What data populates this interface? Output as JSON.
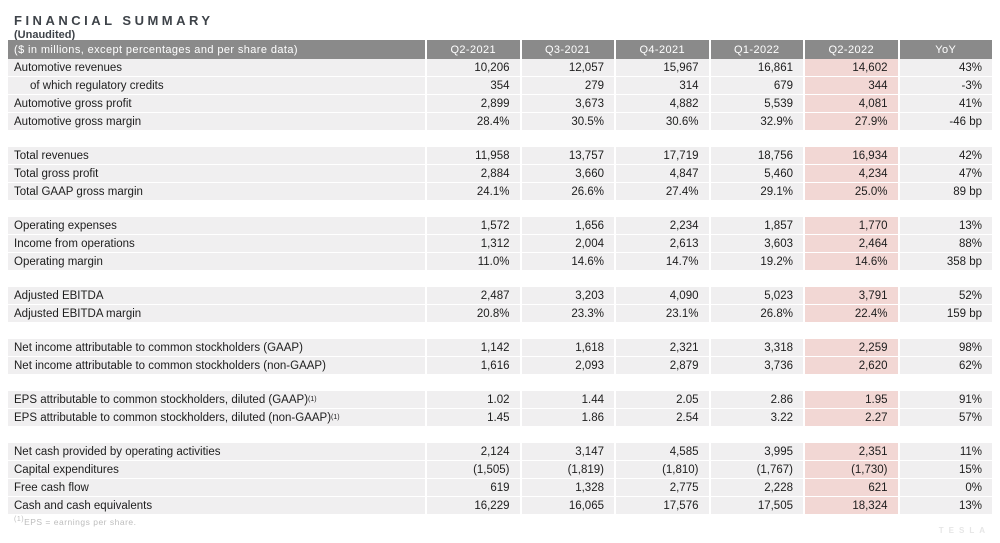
{
  "page": {
    "title": "FINANCIAL SUMMARY",
    "subtitle": "(Unaudited)",
    "footnote_sup": "(1)",
    "footnote_text": "EPS = earnings per share.",
    "logo_text": "TESLA"
  },
  "colors": {
    "header_bg": "#8a8a8a",
    "header_text": "#ffffff",
    "row_bg": "#f0eff0",
    "highlight_bg": "#f2d7d4",
    "title_color": "#3e4349",
    "text_color": "#1d1d1d",
    "footnote_color": "#bdbdbd",
    "logo_color": "#e6e6e6"
  },
  "table": {
    "label_header": "($ in millions, except percentages and per share data)",
    "columns": [
      "Q2-2021",
      "Q3-2021",
      "Q4-2021",
      "Q1-2022",
      "Q2-2022",
      "YoY"
    ],
    "highlight_column": "Q2-2022",
    "sections": [
      {
        "rows": [
          {
            "label": "Automotive revenues",
            "values": [
              "10,206",
              "12,057",
              "15,967",
              "16,861",
              "14,602",
              "43%"
            ]
          },
          {
            "label": "of which regulatory credits",
            "indent": true,
            "values": [
              "354",
              "279",
              "314",
              "679",
              "344",
              "-3%"
            ]
          },
          {
            "label": "Automotive gross profit",
            "values": [
              "2,899",
              "3,673",
              "4,882",
              "5,539",
              "4,081",
              "41%"
            ]
          },
          {
            "label": "Automotive gross margin",
            "values": [
              "28.4%",
              "30.5%",
              "30.6%",
              "32.9%",
              "27.9%",
              "-46 bp"
            ]
          }
        ]
      },
      {
        "rows": [
          {
            "label": "Total revenues",
            "values": [
              "11,958",
              "13,757",
              "17,719",
              "18,756",
              "16,934",
              "42%"
            ]
          },
          {
            "label": "Total gross profit",
            "values": [
              "2,884",
              "3,660",
              "4,847",
              "5,460",
              "4,234",
              "47%"
            ]
          },
          {
            "label": "Total GAAP gross margin",
            "values": [
              "24.1%",
              "26.6%",
              "27.4%",
              "29.1%",
              "25.0%",
              "89 bp"
            ]
          }
        ]
      },
      {
        "rows": [
          {
            "label": "Operating expenses",
            "values": [
              "1,572",
              "1,656",
              "2,234",
              "1,857",
              "1,770",
              "13%"
            ]
          },
          {
            "label": "Income from operations",
            "values": [
              "1,312",
              "2,004",
              "2,613",
              "3,603",
              "2,464",
              "88%"
            ]
          },
          {
            "label": "Operating margin",
            "values": [
              "11.0%",
              "14.6%",
              "14.7%",
              "19.2%",
              "14.6%",
              "358 bp"
            ]
          }
        ]
      },
      {
        "rows": [
          {
            "label": "Adjusted EBITDA",
            "values": [
              "2,487",
              "3,203",
              "4,090",
              "5,023",
              "3,791",
              "52%"
            ]
          },
          {
            "label": "Adjusted EBITDA margin",
            "values": [
              "20.8%",
              "23.3%",
              "23.1%",
              "26.8%",
              "22.4%",
              "159 bp"
            ]
          }
        ]
      },
      {
        "rows": [
          {
            "label": "Net income attributable to common stockholders (GAAP)",
            "values": [
              "1,142",
              "1,618",
              "2,321",
              "3,318",
              "2,259",
              "98%"
            ]
          },
          {
            "label": "Net income attributable to common stockholders (non-GAAP)",
            "values": [
              "1,616",
              "2,093",
              "2,879",
              "3,736",
              "2,620",
              "62%"
            ]
          }
        ]
      },
      {
        "rows": [
          {
            "label": "EPS attributable to common stockholders, diluted (GAAP)",
            "sup": "(1)",
            "values": [
              "1.02",
              "1.44",
              "2.05",
              "2.86",
              "1.95",
              "91%"
            ]
          },
          {
            "label": "EPS attributable to common stockholders, diluted (non-GAAP)",
            "sup": "(1)",
            "values": [
              "1.45",
              "1.86",
              "2.54",
              "3.22",
              "2.27",
              "57%"
            ]
          }
        ]
      },
      {
        "rows": [
          {
            "label": "Net cash provided by operating activities",
            "values": [
              "2,124",
              "3,147",
              "4,585",
              "3,995",
              "2,351",
              "11%"
            ]
          },
          {
            "label": "Capital expenditures",
            "values": [
              "(1,505)",
              "(1,819)",
              "(1,810)",
              "(1,767)",
              "(1,730)",
              "15%"
            ]
          },
          {
            "label": "Free cash flow",
            "values": [
              "619",
              "1,328",
              "2,775",
              "2,228",
              "621",
              "0%"
            ]
          },
          {
            "label": "Cash and cash equivalents",
            "values": [
              "16,229",
              "16,065",
              "17,576",
              "17,505",
              "18,324",
              "13%"
            ]
          }
        ]
      }
    ]
  }
}
